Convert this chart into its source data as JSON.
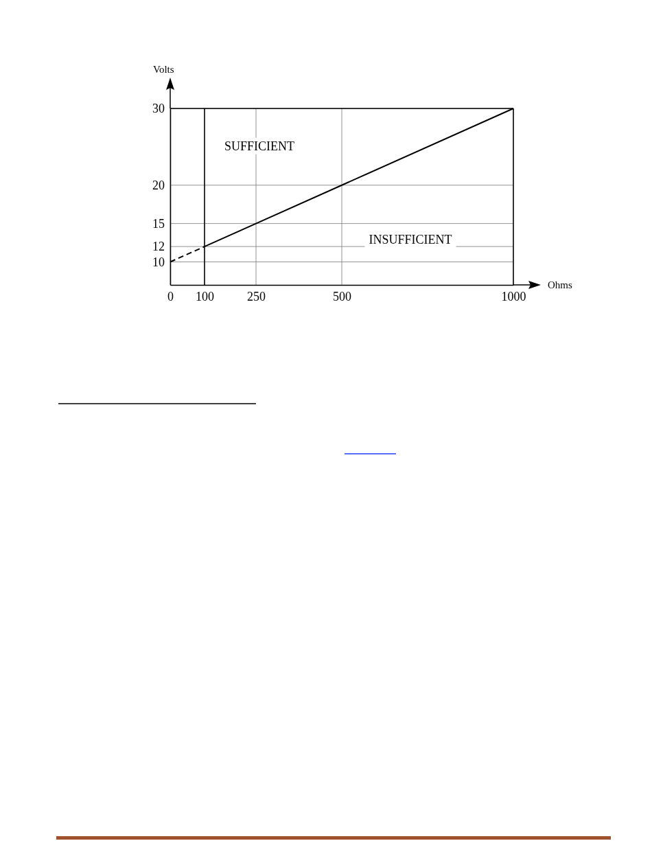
{
  "chart_data": {
    "type": "line",
    "xlabel": "Ohms",
    "ylabel": "Volts",
    "xlim": [
      0,
      1000
    ],
    "xticks": [
      0,
      100,
      250,
      500,
      1000
    ],
    "ylim": [
      7,
      30
    ],
    "yticks": [
      10,
      12,
      15,
      20,
      30
    ],
    "grid": true,
    "marker": "none",
    "ref_lines": [
      {
        "axis": "x",
        "value": 100,
        "color": "#000000",
        "line_style": "solid"
      }
    ],
    "series": [
      {
        "color": "#000000",
        "line_style": "dashed",
        "x": [
          0,
          100
        ],
        "values": [
          10,
          12
        ]
      },
      {
        "color": "#000000",
        "line_style": "solid",
        "x": [
          100,
          250,
          500,
          1000
        ],
        "values": [
          12,
          15,
          20,
          30
        ]
      }
    ],
    "annotations": [
      "SUFFICIENT",
      "INSUFFICIENT"
    ]
  }
}
